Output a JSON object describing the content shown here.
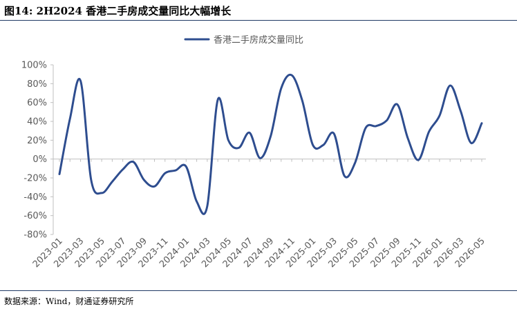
{
  "header": {
    "title": "图14: 2H2024 香港二手房成交量同比大幅增长"
  },
  "footer": {
    "source": "数据来源：Wind，财通证券研究所"
  },
  "colors": {
    "series": "#2e4d8f",
    "rule": "#1f3864",
    "axis": "#bfbfbf",
    "text": "#595959"
  },
  "chart_data": {
    "type": "line",
    "title": "",
    "xlabel": "",
    "ylabel": "",
    "ylim": [
      -80,
      100
    ],
    "yticks": [
      -80,
      -60,
      -40,
      -20,
      0,
      20,
      40,
      60,
      80,
      100
    ],
    "ytick_labels": [
      "-80%",
      "-60%",
      "-40%",
      "-20%",
      "0%",
      "20%",
      "40%",
      "60%",
      "80%",
      "100%"
    ],
    "xtick_labels": [
      "2023-01",
      "2023-03",
      "2023-05",
      "2023-07",
      "2023-09",
      "2023-11",
      "2024-01",
      "2024-03",
      "2024-05",
      "2024-07",
      "2024-09",
      "2024-11",
      "2025-01",
      "2025-03",
      "2025-05",
      "2025-07",
      "2025-09",
      "2025-11",
      "2026-01",
      "2026-03",
      "2026-05"
    ],
    "grid": false,
    "legend": "top-center",
    "series": [
      {
        "name": "香港二手房成交量同比",
        "x": [
          "2023-01",
          "2023-02",
          "2023-03",
          "2023-04",
          "2023-05",
          "2023-06",
          "2023-07",
          "2023-08",
          "2023-09",
          "2023-10",
          "2023-11",
          "2023-12",
          "2024-01",
          "2024-02",
          "2024-03",
          "2024-04",
          "2024-05",
          "2024-06",
          "2024-07",
          "2024-08",
          "2024-09",
          "2024-10",
          "2024-11",
          "2024-12",
          "2025-01",
          "2025-02",
          "2025-03",
          "2025-04",
          "2025-05",
          "2025-06",
          "2025-07",
          "2025-08",
          "2025-09",
          "2025-10",
          "2025-11",
          "2025-12",
          "2026-01",
          "2026-02",
          "2026-03",
          "2026-04",
          "2026-05"
        ],
        "values": [
          -16,
          43,
          83,
          -22,
          -36,
          -24,
          -11,
          -3,
          -22,
          -29,
          -15,
          -12,
          -8,
          -45,
          -50,
          63,
          20,
          12,
          28,
          1,
          24,
          75,
          89,
          62,
          15,
          15,
          27,
          -18,
          -4,
          33,
          35,
          41,
          58,
          22,
          -1,
          29,
          46,
          78,
          51,
          17,
          38
        ]
      }
    ]
  }
}
